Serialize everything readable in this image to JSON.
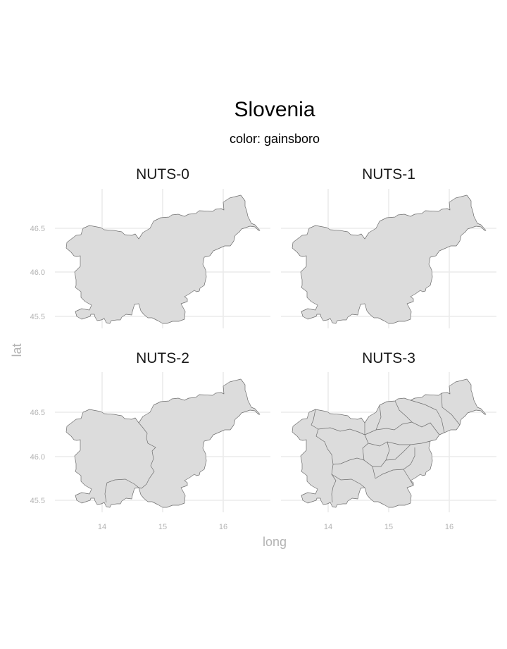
{
  "title": "Slovenia",
  "subtitle": "color: gainsboro",
  "xlabel": "long",
  "ylabel": "lat",
  "colors": {
    "fill": "#dcdcdc",
    "border": "#6e6e6e",
    "grid": "#ebebeb",
    "tick_text": "#b3b3b3"
  },
  "x_ticks": [
    "14",
    "15",
    "16"
  ],
  "y_ticks": [
    "46.5",
    "46.0",
    "45.5"
  ],
  "x_tick_values": [
    14,
    15,
    16
  ],
  "y_tick_values": [
    46.5,
    46.0,
    45.5
  ],
  "panels": [
    {
      "id": "nuts0",
      "title": "NUTS-0",
      "regions": 1
    },
    {
      "id": "nuts1",
      "title": "NUTS-1",
      "regions": 1
    },
    {
      "id": "nuts2",
      "title": "NUTS-2",
      "regions": 2
    },
    {
      "id": "nuts3",
      "title": "NUTS-3",
      "regions": 12
    }
  ]
}
